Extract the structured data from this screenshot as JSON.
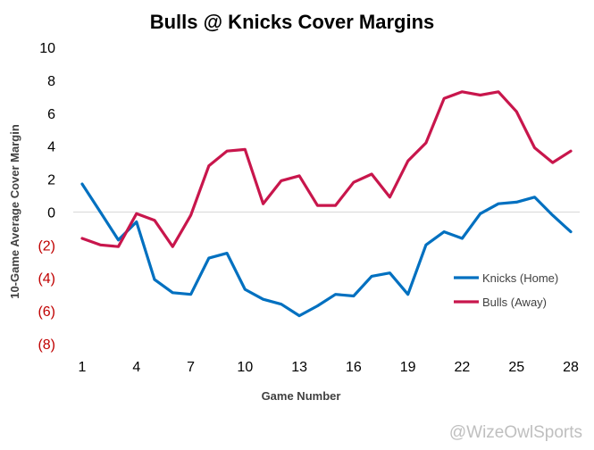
{
  "chart_data": {
    "type": "line",
    "title": "Bulls @ Knicks Cover Margins",
    "xlabel": "Game Number",
    "ylabel": "10-Game Average Cover Margin",
    "x": [
      1,
      2,
      3,
      4,
      5,
      6,
      7,
      8,
      9,
      10,
      11,
      12,
      13,
      14,
      15,
      16,
      17,
      18,
      19,
      20,
      21,
      22,
      23,
      24,
      25,
      26,
      27,
      28
    ],
    "x_ticks": [
      1,
      4,
      7,
      10,
      13,
      16,
      19,
      22,
      25,
      28
    ],
    "x_tick_labels": [
      "1",
      "4",
      "7",
      "10",
      "13",
      "16",
      "19",
      "22",
      "25",
      "28"
    ],
    "ylim": [
      -8,
      10
    ],
    "y_ticks": [
      10,
      8,
      6,
      4,
      2,
      0,
      -2,
      -4,
      -6,
      -8
    ],
    "y_tick_labels": [
      "10",
      "8",
      "6",
      "4",
      "2",
      "0",
      "(2)",
      "(4)",
      "(6)",
      "(8)"
    ],
    "negative_tick_color": "#c00000",
    "positive_tick_color": "#000000",
    "zero_line_color": "#d9d9d9",
    "series": [
      {
        "name": "Knicks (Home)",
        "color": "#0070c0",
        "values": [
          1.7,
          0.0,
          -1.7,
          -0.6,
          -4.1,
          -4.9,
          -5.0,
          -2.8,
          -2.5,
          -4.7,
          -5.3,
          -5.6,
          -6.3,
          -5.7,
          -5.0,
          -5.1,
          -3.9,
          -3.7,
          -5.0,
          -2.0,
          -1.2,
          -1.6,
          -0.1,
          0.5,
          0.6,
          0.9,
          -0.2,
          -1.2
        ]
      },
      {
        "name": "Bulls (Away)",
        "color": "#c8164c",
        "values": [
          -1.6,
          -2.0,
          -2.1,
          -0.1,
          -0.5,
          -2.1,
          -0.2,
          2.8,
          3.7,
          3.8,
          0.5,
          1.9,
          2.2,
          0.4,
          0.4,
          1.8,
          2.3,
          0.9,
          3.1,
          4.2,
          6.9,
          7.3,
          7.1,
          7.3,
          6.1,
          3.9,
          3.0,
          3.7
        ]
      }
    ],
    "legend_position": "right"
  },
  "watermark": "@WizeOwlSports"
}
